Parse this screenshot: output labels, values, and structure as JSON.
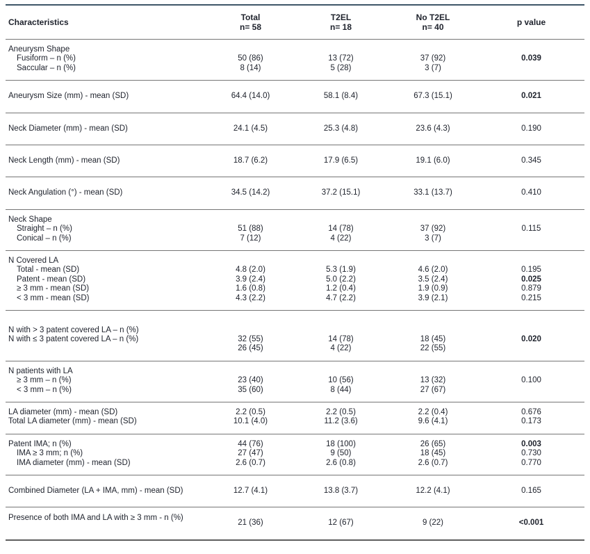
{
  "colors": {
    "text": "#20242e",
    "rule": "#757575",
    "top_rule": "#3e5568",
    "bottom_rule": "#5e5e5e"
  },
  "header": {
    "characteristics": "Characteristics",
    "columns": [
      {
        "id": "total",
        "line1": "Total",
        "line2": "n= 58"
      },
      {
        "id": "t2el",
        "line1": "T2EL",
        "line2": "n= 18"
      },
      {
        "id": "no-t2el",
        "line1": "No T2EL",
        "line2": "n= 40"
      },
      {
        "id": "p-value",
        "line1": "p value",
        "line2": ""
      }
    ]
  },
  "sections": [
    {
      "rows": [
        {
          "label": "Aneurysm Shape"
        },
        {
          "label": "Fusiform – n (%)",
          "indent": true,
          "values": [
            "50 (86)",
            "13 (72)",
            "37 (92)"
          ],
          "p": "0.039",
          "p_bold": true
        },
        {
          "label": "Saccular – n (%)",
          "indent": true,
          "values": [
            "8 (14)",
            "5 (28)",
            "3 (7)"
          ],
          "p": ""
        }
      ]
    },
    {
      "rows": [
        {
          "label": "Aneurysm Size (mm) - mean (SD)",
          "values": [
            "64.4 (14.0)",
            "58.1 (8.4)",
            "67.3 (15.1)"
          ],
          "p": "0.021",
          "p_bold": true
        }
      ]
    },
    {
      "rows": [
        {
          "label": "Neck Diameter (mm) - mean (SD)",
          "values": [
            "24.1 (4.5)",
            "25.3 (4.8)",
            "23.6 (4.3)"
          ],
          "p": "0.190"
        }
      ]
    },
    {
      "rows": [
        {
          "label": "Neck Length (mm) - mean (SD)",
          "values": [
            "18.7 (6.2)",
            "17.9 (6.5)",
            "19.1 (6.0)"
          ],
          "p": "0.345"
        }
      ]
    },
    {
      "rows": [
        {
          "label": "Neck Angulation (°) - mean (SD)",
          "values": [
            "34.5 (14.2)",
            "37.2 (15.1)",
            "33.1 (13.7)"
          ],
          "p": "0.410"
        }
      ]
    },
    {
      "rows": [
        {
          "label": "Neck Shape"
        },
        {
          "label": "Straight – n (%)",
          "indent": true,
          "values": [
            "51 (88)",
            "14 (78)",
            "37 (92)"
          ],
          "p": "0.115"
        },
        {
          "label": "Conical – n (%)",
          "indent": true,
          "values": [
            "7 (12)",
            "4 (22)",
            "3 (7)"
          ],
          "p": ""
        }
      ]
    },
    {
      "rows": [
        {
          "label": "N Covered LA"
        },
        {
          "label": "Total - mean (SD)",
          "indent": true,
          "values": [
            "4.8 (2.0)",
            "5.3 (1.9)",
            "4.6 (2.0)"
          ],
          "p": "0.195"
        },
        {
          "label": "Patent - mean (SD)",
          "indent": true,
          "values": [
            "3.9 (2.4)",
            "5.0 (2.2)",
            "3.5 (2.4)"
          ],
          "p": "0.025",
          "p_bold": true
        },
        {
          "label": "≥ 3 mm - mean (SD)",
          "indent": true,
          "values": [
            "1.6 (0.8)",
            "1.2 (0.4)",
            "1.9 (0.9)"
          ],
          "p": "0.879"
        },
        {
          "label": "< 3 mm - mean (SD)",
          "indent": true,
          "values": [
            "4.3 (2.2)",
            "4.7 (2.2)",
            "3.9 (2.1)"
          ],
          "p": "0.215"
        }
      ]
    },
    {
      "rows": [
        {
          "label": ""
        },
        {
          "label": "N with > 3 patent covered LA – n (%)"
        },
        {
          "label": "N with ≤ 3 patent covered LA – n (%)",
          "values": [
            "32 (55)",
            "14 (78)",
            "18 (45)"
          ],
          "p": "0.020",
          "p_bold": true
        },
        {
          "label": "",
          "values": [
            "26 (45)",
            "4 (22)",
            "22 (55)"
          ],
          "p": ""
        }
      ]
    },
    {
      "rows": [
        {
          "label": "N patients with LA"
        },
        {
          "label": "≥ 3 mm – n (%)",
          "indent": true,
          "values": [
            "23 (40)",
            "10 (56)",
            "13 (32)"
          ],
          "p": "0.100"
        },
        {
          "label": "< 3 mm – n (%)",
          "indent": true,
          "values": [
            "35 (60)",
            "8 (44)",
            "27 (67)"
          ],
          "p": ""
        }
      ]
    },
    {
      "rows": [
        {
          "label": "LA diameter (mm) - mean (SD)",
          "values": [
            "2.2 (0.5)",
            "2.2 (0.5)",
            "2.2 (0.4)"
          ],
          "p": "0.676"
        },
        {
          "label": "Total LA diameter (mm) - mean (SD)",
          "values": [
            "10.1 (4.0)",
            "11.2 (3.6)",
            "9.6 (4.1)"
          ],
          "p": "0.173"
        }
      ]
    },
    {
      "rows": [
        {
          "label": "Patent IMA; n (%)",
          "values": [
            "44 (76)",
            "18 (100)",
            "26 (65)"
          ],
          "p": "0.003",
          "p_bold": true
        },
        {
          "label": "IMA ≥ 3 mm; n (%)",
          "indent": true,
          "values": [
            "27 (47)",
            "9 (50)",
            "18 (45)"
          ],
          "p": "0.730"
        },
        {
          "label": "IMA diameter (mm) - mean (SD)",
          "indent": true,
          "values": [
            "2.6 (0.7)",
            "2.6 (0.8)",
            "2.6 (0.7)"
          ],
          "p": "0.770"
        }
      ]
    },
    {
      "rows": [
        {
          "label": "Combined Diameter (LA + IMA, mm) - mean (SD)",
          "values": [
            "12.7 (4.1)",
            "13.8 (3.7)",
            "12.2 (4.1)"
          ],
          "p": "0.165"
        }
      ]
    },
    {
      "label_raised": true,
      "rows": [
        {
          "label": "Presence of both IMA and LA with ≥ 3 mm - n (%)",
          "values": [
            "21 (36)",
            "12 (67)",
            "9 (22)"
          ],
          "p": "<0.001",
          "p_bold": true
        }
      ]
    }
  ]
}
